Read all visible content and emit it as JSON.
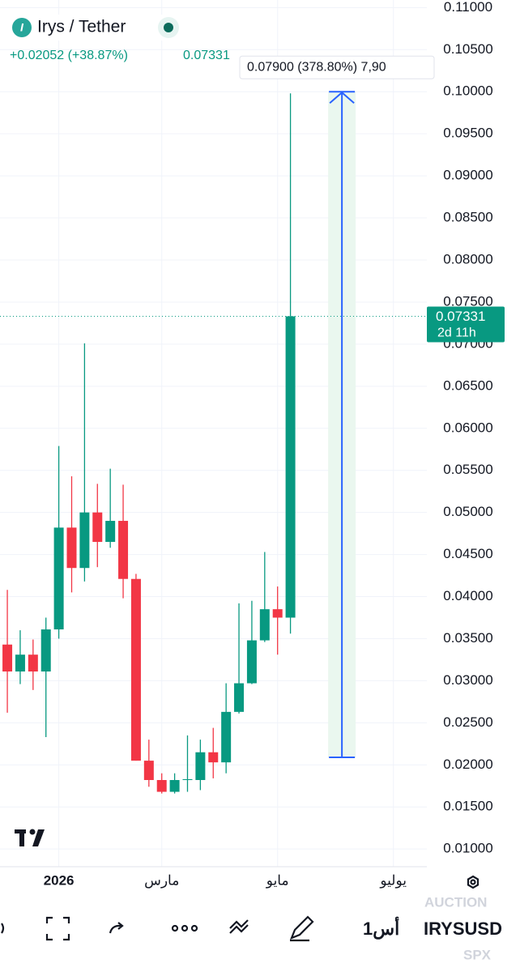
{
  "header": {
    "symbol": "Irys / Tether",
    "change": "+0.02052 (+38.87%)",
    "price": "0.07331"
  },
  "chart_data": {
    "type": "candlestick",
    "x": [
      0,
      1,
      2,
      3,
      4,
      5,
      6,
      7,
      8,
      9,
      10,
      11,
      12,
      13,
      14,
      15,
      16,
      17,
      18,
      19,
      20,
      21,
      22
    ],
    "open": [
      0.0343,
      0.0311,
      0.0331,
      0.0311,
      0.0361,
      0.0482,
      0.0434,
      0.05,
      0.0465,
      0.049,
      0.0421,
      0.0205,
      0.0182,
      0.0168,
      0.0182,
      0.0182,
      0.0215,
      0.0203,
      0.0263,
      0.0297,
      0.0348,
      0.0385,
      0.0375
    ],
    "high": [
      0.0408,
      0.036,
      0.0349,
      0.0375,
      0.0579,
      0.0543,
      0.0701,
      0.0534,
      0.0552,
      0.0533,
      0.0427,
      0.023,
      0.019,
      0.019,
      0.0235,
      0.023,
      0.0244,
      0.0297,
      0.0392,
      0.0395,
      0.0453,
      0.0412,
      0.0998
    ],
    "low": [
      0.0262,
      0.0296,
      0.0289,
      0.0233,
      0.035,
      0.0405,
      0.0418,
      0.0435,
      0.0458,
      0.0398,
      0.0205,
      0.0174,
      0.0166,
      0.0166,
      0.0168,
      0.017,
      0.0184,
      0.019,
      0.0261,
      0.0296,
      0.0346,
      0.0331,
      0.0356
    ],
    "close": [
      0.0311,
      0.0331,
      0.0311,
      0.0361,
      0.0482,
      0.0434,
      0.05,
      0.0465,
      0.049,
      0.0421,
      0.0205,
      0.0182,
      0.0168,
      0.0182,
      0.0183,
      0.0215,
      0.0203,
      0.0263,
      0.0297,
      0.0348,
      0.0385,
      0.0375,
      0.07331
    ],
    "up_color": "#089981",
    "down_color": "#f23645",
    "xlim": [
      -0.57,
      32.6
    ],
    "xticks": [
      {
        "value": 4,
        "label": "2026"
      },
      {
        "value": 12,
        "label": "مارس"
      },
      {
        "value": 21,
        "label": "مايو"
      },
      {
        "value": 30,
        "label": "يوليو"
      }
    ],
    "ylim": [
      0.0079,
      0.1109
    ],
    "yticks": [
      {
        "value": 0.01,
        "label": "0.01000"
      },
      {
        "value": 0.015,
        "label": "0.01500"
      },
      {
        "value": 0.02,
        "label": "0.02000"
      },
      {
        "value": 0.025,
        "label": "0.02500"
      },
      {
        "value": 0.03,
        "label": "0.03000"
      },
      {
        "value": 0.035,
        "label": "0.03500"
      },
      {
        "value": 0.04,
        "label": "0.04000"
      },
      {
        "value": 0.045,
        "label": "0.04500"
      },
      {
        "value": 0.05,
        "label": "0.05000"
      },
      {
        "value": 0.055,
        "label": "0.05500"
      },
      {
        "value": 0.06,
        "label": "0.06000"
      },
      {
        "value": 0.065,
        "label": "0.06500"
      },
      {
        "value": 0.07,
        "label": "0.07000"
      },
      {
        "value": 0.075,
        "label": "0.07500"
      },
      {
        "value": 0.08,
        "label": "0.08000"
      },
      {
        "value": 0.085,
        "label": "0.08500"
      },
      {
        "value": 0.09,
        "label": "0.09000"
      },
      {
        "value": 0.095,
        "label": "0.09500"
      },
      {
        "value": 0.1,
        "label": "0.10000"
      },
      {
        "value": 0.105,
        "label": "0.10500"
      },
      {
        "value": 0.11,
        "label": "0.11000"
      }
    ],
    "grid": true,
    "last_price": 0.07331,
    "countdown": "2d 11h",
    "measure": {
      "from": 0.0209,
      "to": 0.1,
      "label": "0.07900 (378.80%) 7,90"
    }
  },
  "toolbar": {
    "interval": "1أس",
    "ticker": "IRYSUSD",
    "auction": "AUCTION",
    "index": "SPX"
  }
}
